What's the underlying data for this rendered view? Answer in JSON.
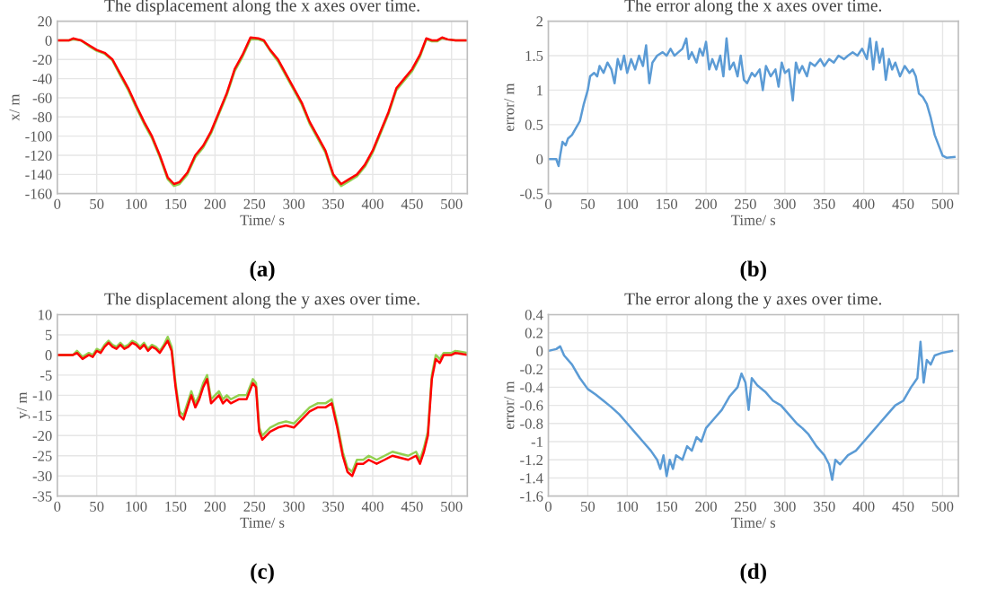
{
  "chart_data": [
    {
      "type": "line",
      "title": "The displacement along the x axes over time.",
      "xlabel": "Time/ s",
      "ylabel": "x/ m",
      "annotations": [
        "(a)"
      ],
      "xlim": [
        0,
        520
      ],
      "xticks": [
        0,
        50,
        100,
        150,
        200,
        250,
        300,
        350,
        400,
        450,
        500
      ],
      "ylim": [
        -160,
        20
      ],
      "yticks": [
        -160,
        -140,
        -120,
        -100,
        -80,
        -60,
        -40,
        -20,
        0,
        20
      ],
      "grid": true,
      "x": [
        0,
        15,
        20,
        30,
        40,
        50,
        60,
        70,
        80,
        90,
        100,
        110,
        120,
        130,
        140,
        148,
        155,
        165,
        175,
        185,
        195,
        205,
        215,
        225,
        235,
        245,
        255,
        262,
        270,
        280,
        290,
        300,
        310,
        320,
        330,
        340,
        350,
        360,
        370,
        380,
        390,
        400,
        410,
        420,
        430,
        440,
        450,
        460,
        468,
        475,
        482,
        488,
        495,
        505,
        520
      ],
      "series": [
        {
          "color": "#92d050",
          "values": [
            0,
            0,
            1,
            0,
            -6,
            -11,
            -14,
            -21,
            -37,
            -52,
            -70,
            -87,
            -102,
            -122,
            -145,
            -152,
            -150,
            -140,
            -122,
            -112,
            -97,
            -77,
            -57,
            -32,
            -17,
            1,
            1,
            -1,
            -11,
            -22,
            -37,
            -52,
            -67,
            -87,
            -102,
            -117,
            -142,
            -152,
            -147,
            -142,
            -132,
            -117,
            -97,
            -77,
            -52,
            -42,
            -32,
            -17,
            1,
            -1,
            -1,
            2,
            1,
            0,
            0
          ]
        },
        {
          "color": "#ff0000",
          "values": [
            0,
            0,
            2,
            0,
            -5,
            -10,
            -13,
            -20,
            -35,
            -50,
            -68,
            -85,
            -100,
            -120,
            -143,
            -150,
            -148,
            -138,
            -120,
            -110,
            -95,
            -75,
            -55,
            -30,
            -15,
            3,
            2,
            0,
            -10,
            -20,
            -35,
            -50,
            -65,
            -85,
            -100,
            -115,
            -140,
            -150,
            -145,
            -140,
            -130,
            -115,
            -95,
            -75,
            -50,
            -40,
            -30,
            -15,
            2,
            0,
            0,
            3,
            1,
            0,
            0
          ]
        }
      ]
    },
    {
      "type": "line",
      "title": "The error along the x axes over time.",
      "xlabel": "Time/ s",
      "ylabel": "error/ m",
      "annotations": [
        "(b)"
      ],
      "xlim": [
        0,
        520
      ],
      "xticks": [
        0,
        50,
        100,
        150,
        200,
        250,
        300,
        350,
        400,
        450,
        500
      ],
      "ylim": [
        -0.5,
        2
      ],
      "yticks": [
        -0.5,
        0,
        0.5,
        1,
        1.5,
        2
      ],
      "grid": true,
      "x": [
        0,
        5,
        10,
        13,
        15,
        18,
        22,
        25,
        30,
        35,
        40,
        45,
        50,
        53,
        58,
        62,
        65,
        70,
        75,
        80,
        84,
        88,
        92,
        96,
        100,
        105,
        110,
        115,
        120,
        124,
        128,
        132,
        138,
        145,
        150,
        155,
        160,
        165,
        170,
        175,
        178,
        182,
        188,
        192,
        196,
        200,
        204,
        208,
        213,
        218,
        222,
        226,
        230,
        235,
        240,
        244,
        248,
        252,
        258,
        262,
        268,
        272,
        276,
        282,
        288,
        292,
        296,
        300,
        305,
        310,
        314,
        318,
        322,
        328,
        332,
        338,
        345,
        350,
        356,
        362,
        368,
        375,
        380,
        386,
        392,
        398,
        404,
        408,
        412,
        416,
        420,
        424,
        428,
        432,
        436,
        440,
        446,
        452,
        458,
        462,
        466,
        470,
        475,
        480,
        485,
        490,
        495,
        500,
        505,
        515
      ],
      "series": [
        {
          "color": "#5b9bd5",
          "values": [
            0,
            0,
            0,
            -0.1,
            0.05,
            0.25,
            0.2,
            0.3,
            0.35,
            0.45,
            0.55,
            0.8,
            1.0,
            1.2,
            1.25,
            1.2,
            1.35,
            1.25,
            1.4,
            1.3,
            1.1,
            1.45,
            1.3,
            1.5,
            1.25,
            1.45,
            1.3,
            1.5,
            1.35,
            1.65,
            1.1,
            1.4,
            1.5,
            1.55,
            1.5,
            1.6,
            1.5,
            1.55,
            1.6,
            1.75,
            1.45,
            1.55,
            1.4,
            1.6,
            1.5,
            1.7,
            1.3,
            1.45,
            1.3,
            1.5,
            1.2,
            1.75,
            1.3,
            1.4,
            1.2,
            1.5,
            1.15,
            1.1,
            1.25,
            1.2,
            1.3,
            1.0,
            1.35,
            1.2,
            1.3,
            1.05,
            1.4,
            1.25,
            1.3,
            0.85,
            1.4,
            1.25,
            1.35,
            1.2,
            1.4,
            1.35,
            1.45,
            1.35,
            1.45,
            1.4,
            1.5,
            1.45,
            1.5,
            1.55,
            1.5,
            1.6,
            1.45,
            1.75,
            1.3,
            1.7,
            1.4,
            1.6,
            1.15,
            1.45,
            1.3,
            1.4,
            1.2,
            1.35,
            1.25,
            1.3,
            1.2,
            0.95,
            0.9,
            0.8,
            0.6,
            0.35,
            0.2,
            0.05,
            0.02,
            0.03
          ]
        }
      ]
    },
    {
      "type": "line",
      "title": "The displacement along the y axes over time.",
      "xlabel": "Time/ s",
      "ylabel": "y/ m",
      "annotations": [
        "(c)"
      ],
      "xlim": [
        0,
        520
      ],
      "xticks": [
        0,
        50,
        100,
        150,
        200,
        250,
        300,
        350,
        400,
        450,
        500
      ],
      "ylim": [
        -35,
        10
      ],
      "yticks": [
        -35,
        -30,
        -25,
        -20,
        -15,
        -10,
        -5,
        0,
        5,
        10
      ],
      "grid": true,
      "x": [
        0,
        20,
        25,
        32,
        40,
        45,
        50,
        55,
        60,
        65,
        70,
        75,
        80,
        85,
        90,
        95,
        100,
        105,
        110,
        115,
        120,
        125,
        130,
        135,
        140,
        145,
        150,
        155,
        160,
        165,
        170,
        175,
        180,
        185,
        190,
        195,
        200,
        205,
        210,
        215,
        220,
        230,
        240,
        248,
        252,
        256,
        260,
        270,
        280,
        290,
        300,
        310,
        320,
        330,
        340,
        348,
        355,
        362,
        368,
        374,
        380,
        388,
        395,
        405,
        415,
        425,
        435,
        445,
        455,
        460,
        465,
        470,
        475,
        480,
        485,
        490,
        500,
        505,
        520
      ],
      "series": [
        {
          "color": "#92d050",
          "values": [
            0,
            0,
            1,
            -0.5,
            0.5,
            0,
            1.5,
            1,
            2.5,
            3.5,
            2.5,
            2,
            3,
            2,
            2.5,
            3.5,
            3,
            2,
            3,
            1.5,
            2.5,
            2,
            1,
            2.5,
            4.5,
            2,
            -7,
            -14,
            -15,
            -12,
            -9,
            -12,
            -10,
            -7,
            -5,
            -11,
            -10,
            -9,
            -11,
            -10,
            -11,
            -10,
            -10,
            -6,
            -7,
            -18,
            -20,
            -18,
            -17,
            -16.5,
            -17,
            -15,
            -13,
            -12,
            -12,
            -11,
            -17,
            -24,
            -28,
            -29,
            -26,
            -26,
            -25,
            -26,
            -25,
            -24,
            -24.5,
            -25,
            -24,
            -26,
            -23,
            -19,
            -5,
            0,
            -1,
            0.5,
            0.5,
            1,
            0.5
          ]
        },
        {
          "color": "#ff0000",
          "values": [
            0,
            0,
            0.5,
            -1,
            0,
            -0.5,
            1,
            0.5,
            2,
            3,
            2,
            1.5,
            2.5,
            1.5,
            2,
            3,
            2.5,
            1.5,
            2.5,
            1,
            2,
            1.5,
            0.5,
            2,
            3.5,
            1,
            -8,
            -15,
            -16,
            -13,
            -10,
            -13,
            -11,
            -8,
            -6,
            -12,
            -11,
            -10,
            -12,
            -11,
            -12,
            -11,
            -11,
            -7,
            -8,
            -19,
            -21,
            -19,
            -18,
            -17.5,
            -18,
            -16,
            -14,
            -13,
            -13,
            -12,
            -18,
            -25,
            -29,
            -30,
            -27,
            -27,
            -26,
            -27,
            -26,
            -25,
            -25.5,
            -26,
            -25,
            -27,
            -24,
            -20,
            -6,
            -1,
            -2,
            0,
            0,
            0.5,
            0
          ]
        }
      ]
    },
    {
      "type": "line",
      "title": "The error along the y axes over time.",
      "xlabel": "Time/ s",
      "ylabel": "error/ m",
      "annotations": [
        "(d)"
      ],
      "xlim": [
        0,
        520
      ],
      "xticks": [
        0,
        50,
        100,
        150,
        200,
        250,
        300,
        350,
        400,
        450,
        500
      ],
      "ylim": [
        -1.6,
        0.4
      ],
      "yticks": [
        -1.6,
        -1.4,
        -1.2,
        -1,
        -0.8,
        -0.6,
        -0.4,
        -0.2,
        0,
        0.2,
        0.4
      ],
      "grid": true,
      "x": [
        0,
        10,
        15,
        20,
        30,
        40,
        50,
        60,
        70,
        80,
        90,
        100,
        110,
        120,
        130,
        138,
        142,
        146,
        150,
        154,
        158,
        162,
        170,
        176,
        182,
        188,
        194,
        200,
        210,
        220,
        230,
        240,
        245,
        250,
        254,
        258,
        265,
        275,
        285,
        295,
        305,
        315,
        322,
        330,
        340,
        350,
        356,
        360,
        364,
        370,
        380,
        390,
        400,
        410,
        420,
        430,
        440,
        450,
        460,
        468,
        472,
        476,
        480,
        485,
        490,
        500,
        512
      ],
      "series": [
        {
          "color": "#5b9bd5",
          "values": [
            0,
            0.02,
            0.05,
            -0.05,
            -0.15,
            -0.3,
            -0.42,
            -0.48,
            -0.55,
            -0.62,
            -0.7,
            -0.8,
            -0.9,
            -1.0,
            -1.1,
            -1.2,
            -1.3,
            -1.15,
            -1.38,
            -1.2,
            -1.3,
            -1.15,
            -1.2,
            -1.05,
            -1.1,
            -0.95,
            -1.0,
            -0.85,
            -0.75,
            -0.65,
            -0.5,
            -0.4,
            -0.25,
            -0.35,
            -0.65,
            -0.3,
            -0.38,
            -0.45,
            -0.55,
            -0.6,
            -0.7,
            -0.8,
            -0.85,
            -0.92,
            -1.05,
            -1.15,
            -1.25,
            -1.42,
            -1.2,
            -1.25,
            -1.15,
            -1.1,
            -1.0,
            -0.9,
            -0.8,
            -0.7,
            -0.6,
            -0.55,
            -0.4,
            -0.3,
            0.1,
            -0.35,
            -0.1,
            -0.15,
            -0.05,
            -0.02,
            0
          ]
        }
      ]
    }
  ]
}
